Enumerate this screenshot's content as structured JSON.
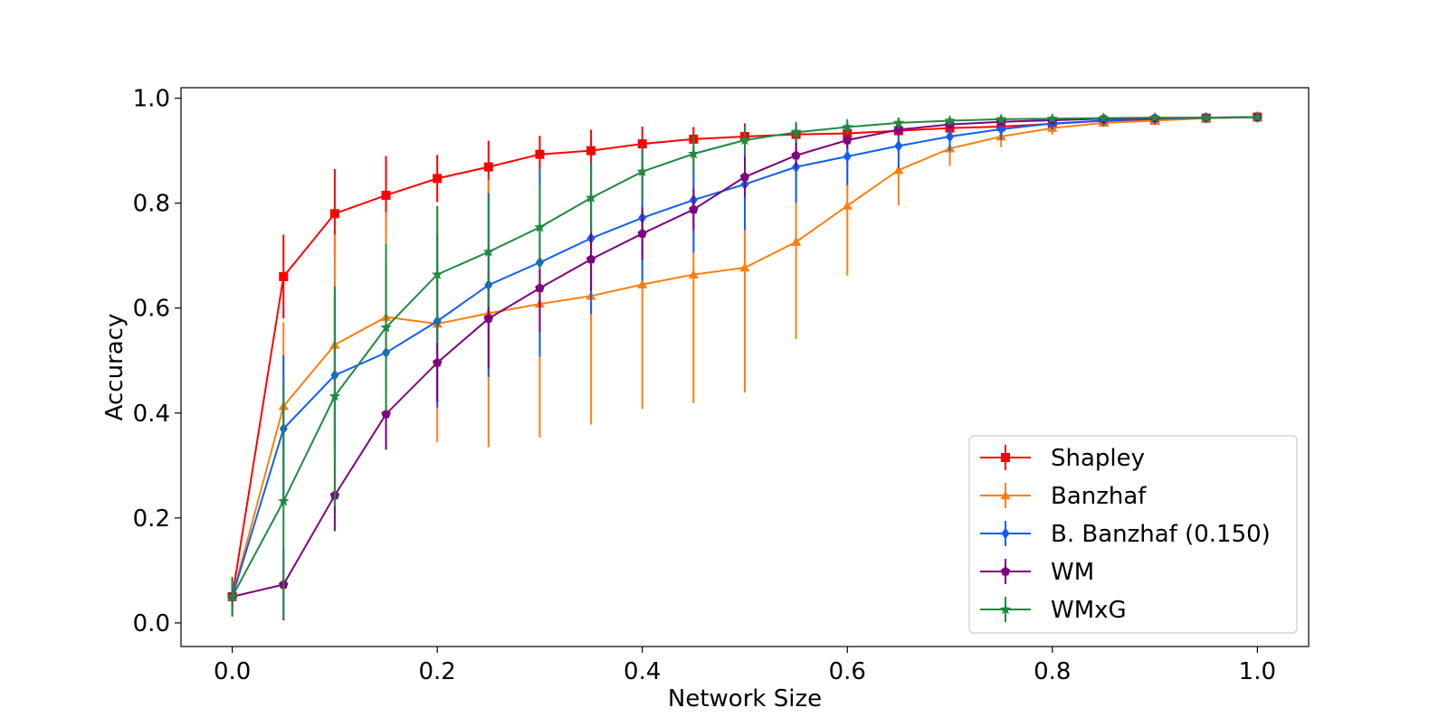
{
  "chart_data": {
    "type": "line",
    "title": "",
    "xlabel": "Network Size",
    "ylabel": "Accuracy",
    "xlim": [
      -0.05,
      1.05
    ],
    "ylim": [
      -0.045,
      1.02
    ],
    "xticks": [
      0.0,
      0.2,
      0.4,
      0.6,
      0.8,
      1.0
    ],
    "yticks": [
      0.0,
      0.2,
      0.4,
      0.6,
      0.8,
      1.0
    ],
    "xtick_labels": [
      "0.0",
      "0.2",
      "0.4",
      "0.6",
      "0.8",
      "1.0"
    ],
    "ytick_labels": [
      "0.0",
      "0.2",
      "0.4",
      "0.6",
      "0.8",
      "1.0"
    ],
    "grid": false,
    "legend_position": "lower-right",
    "x": [
      0.0,
      0.05,
      0.1,
      0.15,
      0.2,
      0.25,
      0.3,
      0.35,
      0.4,
      0.45,
      0.5,
      0.55,
      0.6,
      0.65,
      0.7,
      0.75,
      0.8,
      0.85,
      0.9,
      0.95,
      1.0
    ],
    "series": [
      {
        "name": "Shapley",
        "color": "#ff0000",
        "marker": "square",
        "values": [
          0.05,
          0.66,
          0.78,
          0.815,
          0.847,
          0.869,
          0.893,
          0.9,
          0.913,
          0.922,
          0.927,
          0.931,
          0.933,
          0.938,
          0.943,
          0.946,
          0.951,
          0.957,
          0.958,
          0.962,
          0.964
        ],
        "errors": [
          0.035,
          0.08,
          0.085,
          0.075,
          0.045,
          0.05,
          0.035,
          0.04,
          0.033,
          0.023,
          0.025,
          0.02,
          0.012,
          0.01,
          0.008,
          0.006,
          0.005,
          0.004,
          0.003,
          0.003,
          0.002
        ]
      },
      {
        "name": "Banzhaf",
        "color": "#ff7f0e",
        "marker": "triangle",
        "values": [
          0.05,
          0.413,
          0.53,
          0.583,
          0.57,
          0.59,
          0.608,
          0.623,
          0.645,
          0.664,
          0.677,
          0.726,
          0.795,
          0.863,
          0.904,
          0.927,
          0.943,
          0.953,
          0.957,
          0.962,
          0.964
        ],
        "errors": [
          0.035,
          0.16,
          0.21,
          0.2,
          0.225,
          0.255,
          0.255,
          0.245,
          0.237,
          0.245,
          0.238,
          0.185,
          0.133,
          0.067,
          0.033,
          0.02,
          0.012,
          0.008,
          0.006,
          0.004,
          0.003
        ]
      },
      {
        "name": "B. Banzhaf (0.150)",
        "color": "#0f5ff5",
        "marker": "diamond",
        "values": [
          0.05,
          0.37,
          0.472,
          0.515,
          0.575,
          0.644,
          0.687,
          0.733,
          0.772,
          0.806,
          0.836,
          0.869,
          0.889,
          0.909,
          0.927,
          0.941,
          0.952,
          0.957,
          0.961,
          0.963,
          0.964
        ],
        "errors": [
          0.025,
          0.14,
          0.16,
          0.175,
          0.165,
          0.175,
          0.18,
          0.145,
          0.12,
          0.1,
          0.087,
          0.068,
          0.055,
          0.042,
          0.028,
          0.02,
          0.012,
          0.008,
          0.006,
          0.004,
          0.003
        ]
      },
      {
        "name": "WM",
        "color": "#7f007f",
        "marker": "pentagon",
        "values": [
          0.05,
          0.073,
          0.243,
          0.398,
          0.496,
          0.58,
          0.638,
          0.693,
          0.742,
          0.788,
          0.85,
          0.891,
          0.92,
          0.94,
          0.95,
          0.955,
          0.958,
          0.961,
          0.962,
          0.963,
          0.964
        ],
        "errors": [
          0.02,
          0.068,
          0.068,
          0.068,
          0.075,
          0.095,
          0.085,
          0.06,
          0.05,
          0.04,
          0.038,
          0.025,
          0.015,
          0.01,
          0.008,
          0.006,
          0.005,
          0.004,
          0.003,
          0.003,
          0.002
        ]
      },
      {
        "name": "WMxG",
        "color": "#1f8a40",
        "marker": "star",
        "values": [
          0.05,
          0.232,
          0.432,
          0.563,
          0.664,
          0.707,
          0.754,
          0.81,
          0.86,
          0.894,
          0.92,
          0.935,
          0.945,
          0.953,
          0.957,
          0.96,
          0.961,
          0.962,
          0.963,
          0.963,
          0.964
        ],
        "errors": [
          0.038,
          0.225,
          0.21,
          0.16,
          0.13,
          0.105,
          0.08,
          0.065,
          0.05,
          0.035,
          0.027,
          0.02,
          0.015,
          0.01,
          0.008,
          0.006,
          0.005,
          0.004,
          0.003,
          0.003,
          0.002
        ]
      }
    ]
  }
}
